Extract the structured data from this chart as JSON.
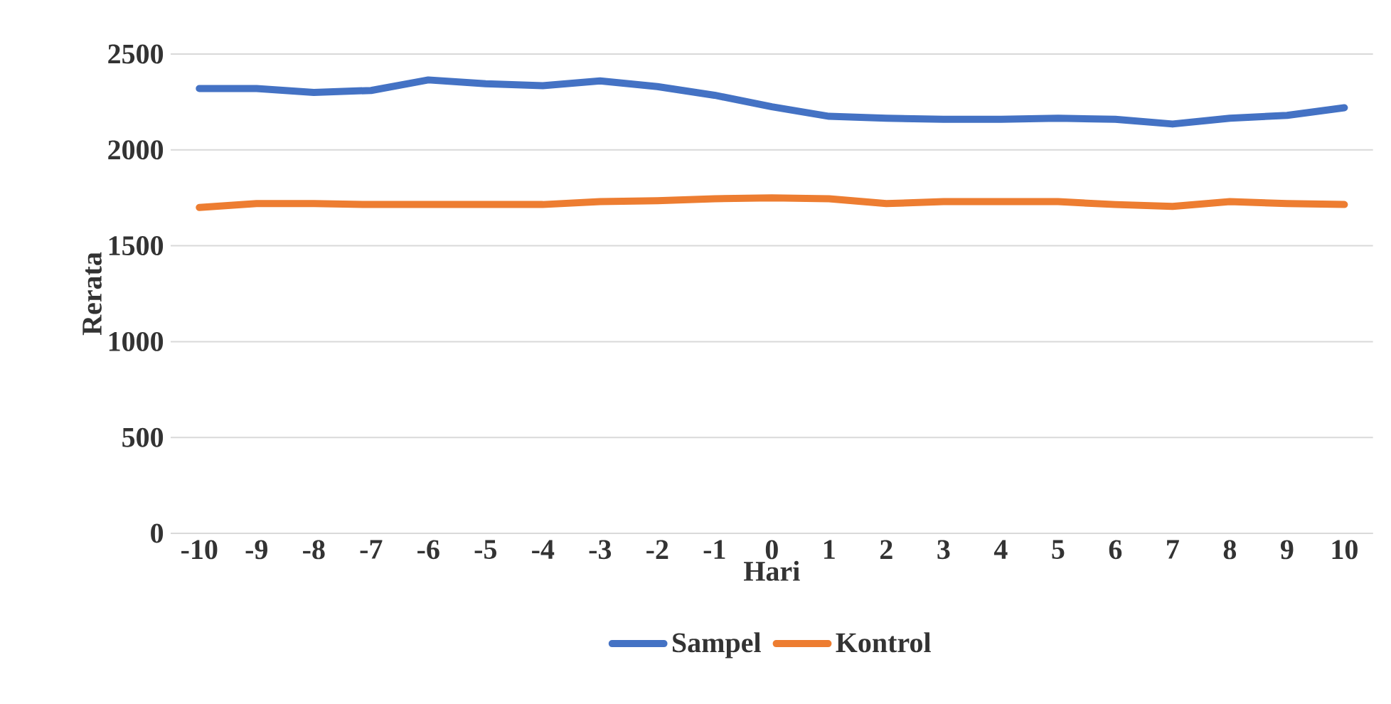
{
  "chart_data": {
    "type": "line",
    "xlabel": "Hari",
    "ylabel": "Rerata",
    "x": [
      -10,
      -9,
      -8,
      -7,
      -6,
      -5,
      -4,
      -3,
      -2,
      -1,
      0,
      1,
      2,
      3,
      4,
      5,
      6,
      7,
      8,
      9,
      10
    ],
    "series": [
      {
        "name": "Sampel",
        "color": "#4472c4",
        "values": [
          2320,
          2320,
          2300,
          2310,
          2365,
          2345,
          2335,
          2360,
          2330,
          2285,
          2225,
          2175,
          2165,
          2160,
          2160,
          2165,
          2160,
          2135,
          2165,
          2180,
          2220
        ]
      },
      {
        "name": "Kontrol",
        "color": "#ed7d31",
        "values": [
          1700,
          1720,
          1720,
          1715,
          1715,
          1715,
          1715,
          1730,
          1735,
          1745,
          1750,
          1745,
          1720,
          1730,
          1730,
          1730,
          1715,
          1705,
          1730,
          1720,
          1715
        ]
      }
    ],
    "xlim": [
      -10.5,
      10.5
    ],
    "xticks": [
      -10,
      -9,
      -8,
      -7,
      -6,
      -5,
      -4,
      -3,
      -2,
      -1,
      0,
      1,
      2,
      3,
      4,
      5,
      6,
      7,
      8,
      9,
      10
    ],
    "ylim": [
      0,
      2500
    ],
    "yticks": [
      0,
      500,
      1000,
      1500,
      2000,
      2500
    ],
    "grid": "y",
    "legend": "bottom",
    "marker": "none",
    "line_style": "solid"
  }
}
